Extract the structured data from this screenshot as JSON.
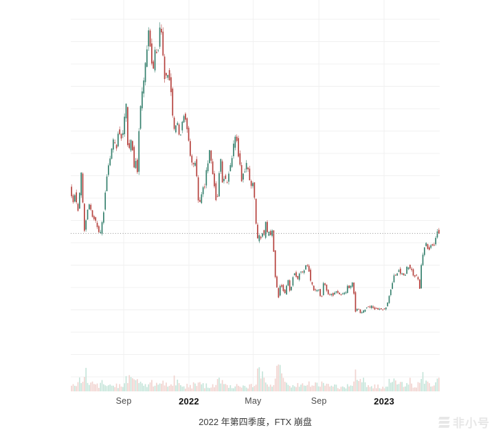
{
  "page": {
    "background": "#ffffff"
  },
  "caption": {
    "text": "2022 年第四季度，FTX 崩盘"
  },
  "watermark": {
    "text": "非小号",
    "icon": "feixiaohao-logo"
  },
  "chart_data": {
    "type": "candlestick",
    "title": "",
    "grid": "on",
    "legend": "none",
    "x_axis": {
      "unit": "days-from-chart-start",
      "days_total": 690,
      "ticks": [
        {
          "label": "Sep",
          "day": 99,
          "bold": false
        },
        {
          "label": "2022",
          "day": 221,
          "bold": true
        },
        {
          "label": "May",
          "day": 341,
          "bold": false
        },
        {
          "label": "Sep",
          "day": 464,
          "bold": false
        },
        {
          "label": "2023",
          "day": 586,
          "bold": true
        }
      ]
    },
    "y_axis": {
      "labels_visible": false,
      "approx_price_range": [
        15600,
        69000
      ]
    },
    "last_price_line": {
      "price": 30000,
      "style": "dotted"
    },
    "price_anchors": [
      [
        0,
        38500
      ],
      [
        3,
        36800
      ],
      [
        6,
        35500
      ],
      [
        10,
        37500
      ],
      [
        14,
        33400
      ],
      [
        17,
        35800
      ],
      [
        21,
        40500
      ],
      [
        24,
        35500
      ],
      [
        28,
        29000
      ],
      [
        31,
        34000
      ],
      [
        36,
        35300
      ],
      [
        40,
        33600
      ],
      [
        46,
        32500
      ],
      [
        50,
        31500
      ],
      [
        56,
        29500
      ],
      [
        60,
        32200
      ],
      [
        64,
        34700
      ],
      [
        68,
        39900
      ],
      [
        74,
        42800
      ],
      [
        78,
        44600
      ],
      [
        82,
        46700
      ],
      [
        86,
        44500
      ],
      [
        91,
        48900
      ],
      [
        95,
        47000
      ],
      [
        98,
        47100
      ],
      [
        105,
        52700
      ],
      [
        107,
        46000
      ],
      [
        112,
        44900
      ],
      [
        116,
        47300
      ],
      [
        119,
        40700
      ],
      [
        123,
        42800
      ],
      [
        126,
        41000
      ],
      [
        129,
        48200
      ],
      [
        134,
        54700
      ],
      [
        139,
        57400
      ],
      [
        143,
        61600
      ],
      [
        148,
        66000
      ],
      [
        152,
        60900
      ],
      [
        155,
        58400
      ],
      [
        160,
        63300
      ],
      [
        164,
        61000
      ],
      [
        169,
        68000
      ],
      [
        172,
        64200
      ],
      [
        175,
        60000
      ],
      [
        178,
        56500
      ],
      [
        182,
        58700
      ],
      [
        187,
        57300
      ],
      [
        190,
        54000
      ],
      [
        193,
        49200
      ],
      [
        196,
        47500
      ],
      [
        199,
        50100
      ],
      [
        205,
        46700
      ],
      [
        212,
        50800
      ],
      [
        217,
        50400
      ],
      [
        221,
        47300
      ],
      [
        226,
        43000
      ],
      [
        230,
        41800
      ],
      [
        235,
        43100
      ],
      [
        239,
        36800
      ],
      [
        242,
        35000
      ],
      [
        245,
        36300
      ],
      [
        249,
        37900
      ],
      [
        252,
        38500
      ],
      [
        256,
        41500
      ],
      [
        261,
        44500
      ],
      [
        265,
        42400
      ],
      [
        268,
        40100
      ],
      [
        272,
        37000
      ],
      [
        275,
        34700
      ],
      [
        278,
        39200
      ],
      [
        281,
        44400
      ],
      [
        285,
        39400
      ],
      [
        289,
        39900
      ],
      [
        293,
        38800
      ],
      [
        297,
        40900
      ],
      [
        301,
        42200
      ],
      [
        305,
        44500
      ],
      [
        308,
        47400
      ],
      [
        312,
        46400
      ],
      [
        316,
        43200
      ],
      [
        321,
        39500
      ],
      [
        325,
        40800
      ],
      [
        328,
        41500
      ],
      [
        331,
        42300
      ],
      [
        335,
        39700
      ],
      [
        339,
        38600
      ],
      [
        342,
        39200
      ],
      [
        345,
        36500
      ],
      [
        349,
        30100
      ],
      [
        352,
        28300
      ],
      [
        355,
        29900
      ],
      [
        358,
        28800
      ],
      [
        360,
        30300
      ],
      [
        363,
        29500
      ],
      [
        366,
        31700
      ],
      [
        369,
        29900
      ],
      [
        372,
        30500
      ],
      [
        375,
        29700
      ],
      [
        377,
        31400
      ],
      [
        380,
        28400
      ],
      [
        384,
        22500
      ],
      [
        387,
        20500
      ],
      [
        389,
        18000
      ],
      [
        392,
        20600
      ],
      [
        395,
        21100
      ],
      [
        398,
        20100
      ],
      [
        402,
        19300
      ],
      [
        405,
        20600
      ],
      [
        408,
        21600
      ],
      [
        411,
        19900
      ],
      [
        414,
        20800
      ],
      [
        417,
        22500
      ],
      [
        421,
        23300
      ],
      [
        424,
        22200
      ],
      [
        427,
        21600
      ],
      [
        430,
        23800
      ],
      [
        433,
        23200
      ],
      [
        437,
        22900
      ],
      [
        440,
        24300
      ],
      [
        443,
        23900
      ],
      [
        446,
        24400
      ],
      [
        449,
        21500
      ],
      [
        452,
        21300
      ],
      [
        455,
        20000
      ],
      [
        458,
        20050
      ],
      [
        460,
        19600
      ],
      [
        463,
        20300
      ],
      [
        466,
        19800
      ],
      [
        469,
        18800
      ],
      [
        472,
        19300
      ],
      [
        475,
        22400
      ],
      [
        478,
        20200
      ],
      [
        482,
        19500
      ],
      [
        485,
        19000
      ],
      [
        488,
        19600
      ],
      [
        491,
        18900
      ],
      [
        494,
        19300
      ],
      [
        497,
        20100
      ],
      [
        500,
        19500
      ],
      [
        503,
        19100
      ],
      [
        506,
        19400
      ],
      [
        509,
        19200
      ],
      [
        512,
        19600
      ],
      [
        515,
        19300
      ],
      [
        519,
        20700
      ],
      [
        522,
        20200
      ],
      [
        525,
        20600
      ],
      [
        529,
        21300
      ],
      [
        532,
        18500
      ],
      [
        533,
        15900
      ],
      [
        536,
        16900
      ],
      [
        539,
        16700
      ],
      [
        542,
        16200
      ],
      [
        545,
        15760
      ],
      [
        548,
        16200
      ],
      [
        551,
        16500
      ],
      [
        555,
        17100
      ],
      [
        558,
        17000
      ],
      [
        561,
        16900
      ],
      [
        564,
        17200
      ],
      [
        567,
        16800
      ],
      [
        570,
        16700
      ],
      [
        573,
        16900
      ],
      [
        575,
        16800
      ],
      [
        578,
        16600
      ],
      [
        581,
        16700
      ],
      [
        584,
        16600
      ],
      [
        586,
        16550
      ],
      [
        589,
        16900
      ],
      [
        592,
        17200
      ],
      [
        595,
        18200
      ],
      [
        599,
        19900
      ],
      [
        602,
        20900
      ],
      [
        606,
        22700
      ],
      [
        609,
        22600
      ],
      [
        612,
        23000
      ],
      [
        614,
        23750
      ],
      [
        617,
        23100
      ],
      [
        620,
        22900
      ],
      [
        623,
        23000
      ],
      [
        625,
        21800
      ],
      [
        628,
        23200
      ],
      [
        632,
        24600
      ],
      [
        635,
        23500
      ],
      [
        638,
        24000
      ],
      [
        640,
        23200
      ],
      [
        643,
        22400
      ],
      [
        646,
        22500
      ],
      [
        649,
        22300
      ],
      [
        652,
        21900
      ],
      [
        654,
        20200
      ],
      [
        657,
        24300
      ],
      [
        661,
        26900
      ],
      [
        664,
        27800
      ],
      [
        666,
        28300
      ],
      [
        669,
        27500
      ],
      [
        671,
        27000
      ],
      [
        674,
        28200
      ],
      [
        677,
        28000
      ],
      [
        680,
        27800
      ],
      [
        683,
        28400
      ],
      [
        685,
        29600
      ],
      [
        687,
        30300
      ],
      [
        689,
        30000
      ]
    ],
    "volume_relative": [
      [
        0,
        10
      ],
      [
        8,
        14
      ],
      [
        14,
        18
      ],
      [
        22,
        32
      ],
      [
        28,
        26
      ],
      [
        34,
        14
      ],
      [
        40,
        12
      ],
      [
        48,
        9
      ],
      [
        56,
        14
      ],
      [
        62,
        10
      ],
      [
        68,
        16
      ],
      [
        75,
        10
      ],
      [
        82,
        12
      ],
      [
        90,
        9
      ],
      [
        98,
        10
      ],
      [
        105,
        24
      ],
      [
        112,
        28
      ],
      [
        119,
        22
      ],
      [
        125,
        12
      ],
      [
        129,
        12
      ],
      [
        136,
        10
      ],
      [
        143,
        12
      ],
      [
        148,
        16
      ],
      [
        155,
        12
      ],
      [
        162,
        10
      ],
      [
        169,
        18
      ],
      [
        175,
        12
      ],
      [
        182,
        10
      ],
      [
        187,
        9
      ],
      [
        193,
        22
      ],
      [
        200,
        10
      ],
      [
        206,
        8
      ],
      [
        212,
        8
      ],
      [
        221,
        10
      ],
      [
        226,
        9
      ],
      [
        230,
        12
      ],
      [
        236,
        10
      ],
      [
        242,
        16
      ],
      [
        248,
        10
      ],
      [
        252,
        10
      ],
      [
        257,
        9
      ],
      [
        261,
        12
      ],
      [
        268,
        10
      ],
      [
        275,
        16
      ],
      [
        281,
        14
      ],
      [
        288,
        9
      ],
      [
        293,
        10
      ],
      [
        300,
        8
      ],
      [
        308,
        10
      ],
      [
        315,
        8
      ],
      [
        321,
        10
      ],
      [
        326,
        8
      ],
      [
        331,
        8
      ],
      [
        338,
        9
      ],
      [
        345,
        12
      ],
      [
        349,
        60
      ],
      [
        352,
        45
      ],
      [
        355,
        30
      ],
      [
        360,
        18
      ],
      [
        366,
        10
      ],
      [
        371,
        9
      ],
      [
        377,
        12
      ],
      [
        381,
        16
      ],
      [
        384,
        30
      ],
      [
        389,
        40
      ],
      [
        392,
        24
      ],
      [
        397,
        14
      ],
      [
        402,
        12
      ],
      [
        408,
        9
      ],
      [
        414,
        10
      ],
      [
        421,
        14
      ],
      [
        427,
        10
      ],
      [
        430,
        12
      ],
      [
        437,
        9
      ],
      [
        446,
        12
      ],
      [
        452,
        8
      ],
      [
        460,
        16
      ],
      [
        466,
        10
      ],
      [
        469,
        12
      ],
      [
        475,
        18
      ],
      [
        482,
        10
      ],
      [
        488,
        8
      ],
      [
        494,
        8
      ],
      [
        500,
        7
      ],
      [
        506,
        8
      ],
      [
        512,
        7
      ],
      [
        519,
        10
      ],
      [
        525,
        9
      ],
      [
        530,
        45
      ],
      [
        533,
        30
      ],
      [
        538,
        16
      ],
      [
        542,
        14
      ],
      [
        545,
        18
      ],
      [
        551,
        10
      ],
      [
        555,
        8
      ],
      [
        561,
        6
      ],
      [
        567,
        8
      ],
      [
        575,
        10
      ],
      [
        581,
        6
      ],
      [
        586,
        8
      ],
      [
        592,
        10
      ],
      [
        597,
        25
      ],
      [
        602,
        16
      ],
      [
        606,
        18
      ],
      [
        614,
        14
      ],
      [
        620,
        10
      ],
      [
        625,
        12
      ],
      [
        632,
        16
      ],
      [
        640,
        10
      ],
      [
        646,
        8
      ],
      [
        653,
        30
      ],
      [
        657,
        24
      ],
      [
        661,
        20
      ],
      [
        666,
        14
      ],
      [
        671,
        10
      ],
      [
        677,
        8
      ],
      [
        683,
        12
      ],
      [
        687,
        26
      ],
      [
        689,
        22
      ]
    ],
    "colors": {
      "up": "#35806d",
      "down": "#b5403c",
      "volume_up": "#c0e2d6",
      "volume_down": "#f0cfcb",
      "grid": "#f0f0f0",
      "dotted": "#8c8c8c",
      "tick_label": "#4a4a4a",
      "tick_label_bold": "#111111",
      "caption": "#3a3a3a"
    }
  }
}
